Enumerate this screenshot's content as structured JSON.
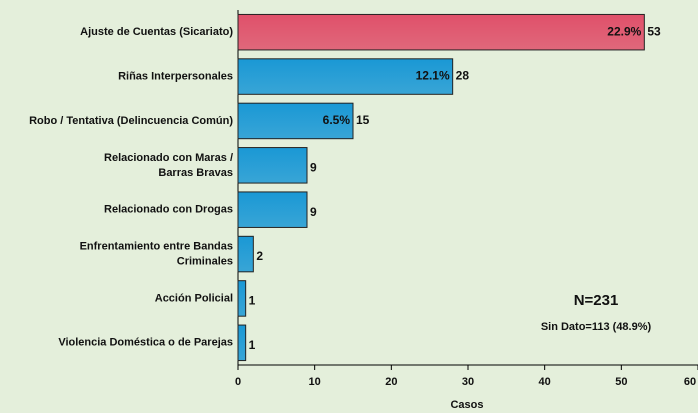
{
  "chart_data": {
    "type": "hbar",
    "categories": [
      "Ajuste de Cuentas (Sicariato)",
      "Riñas Interpersonales",
      "Robo / Tentativa (Delincuencia Común)",
      "Relacionado con Maras /\nBarras Bravas",
      "Relacionado con Drogas",
      "Enfrentamiento entre Bandas\nCriminales",
      "Acción Policial",
      "Violencia Doméstica o de Parejas"
    ],
    "values": [
      53,
      28,
      15,
      9,
      9,
      2,
      1,
      1
    ],
    "percent_labels": [
      "22.9%",
      "12.1%",
      "6.5%",
      null,
      null,
      null,
      null,
      null
    ],
    "colors": [
      "#e0506a",
      "#1a98d5",
      "#1a98d5",
      "#1a98d5",
      "#1a98d5",
      "#1a98d5",
      "#1a98d5",
      "#1a98d5"
    ],
    "xlabel": "Casos",
    "xlim": [
      0,
      60
    ],
    "xticks": [
      0,
      10,
      20,
      30,
      40,
      50,
      60
    ],
    "annotations": [
      "N=231",
      "Sin Dato=113 (48.9%)"
    ]
  }
}
